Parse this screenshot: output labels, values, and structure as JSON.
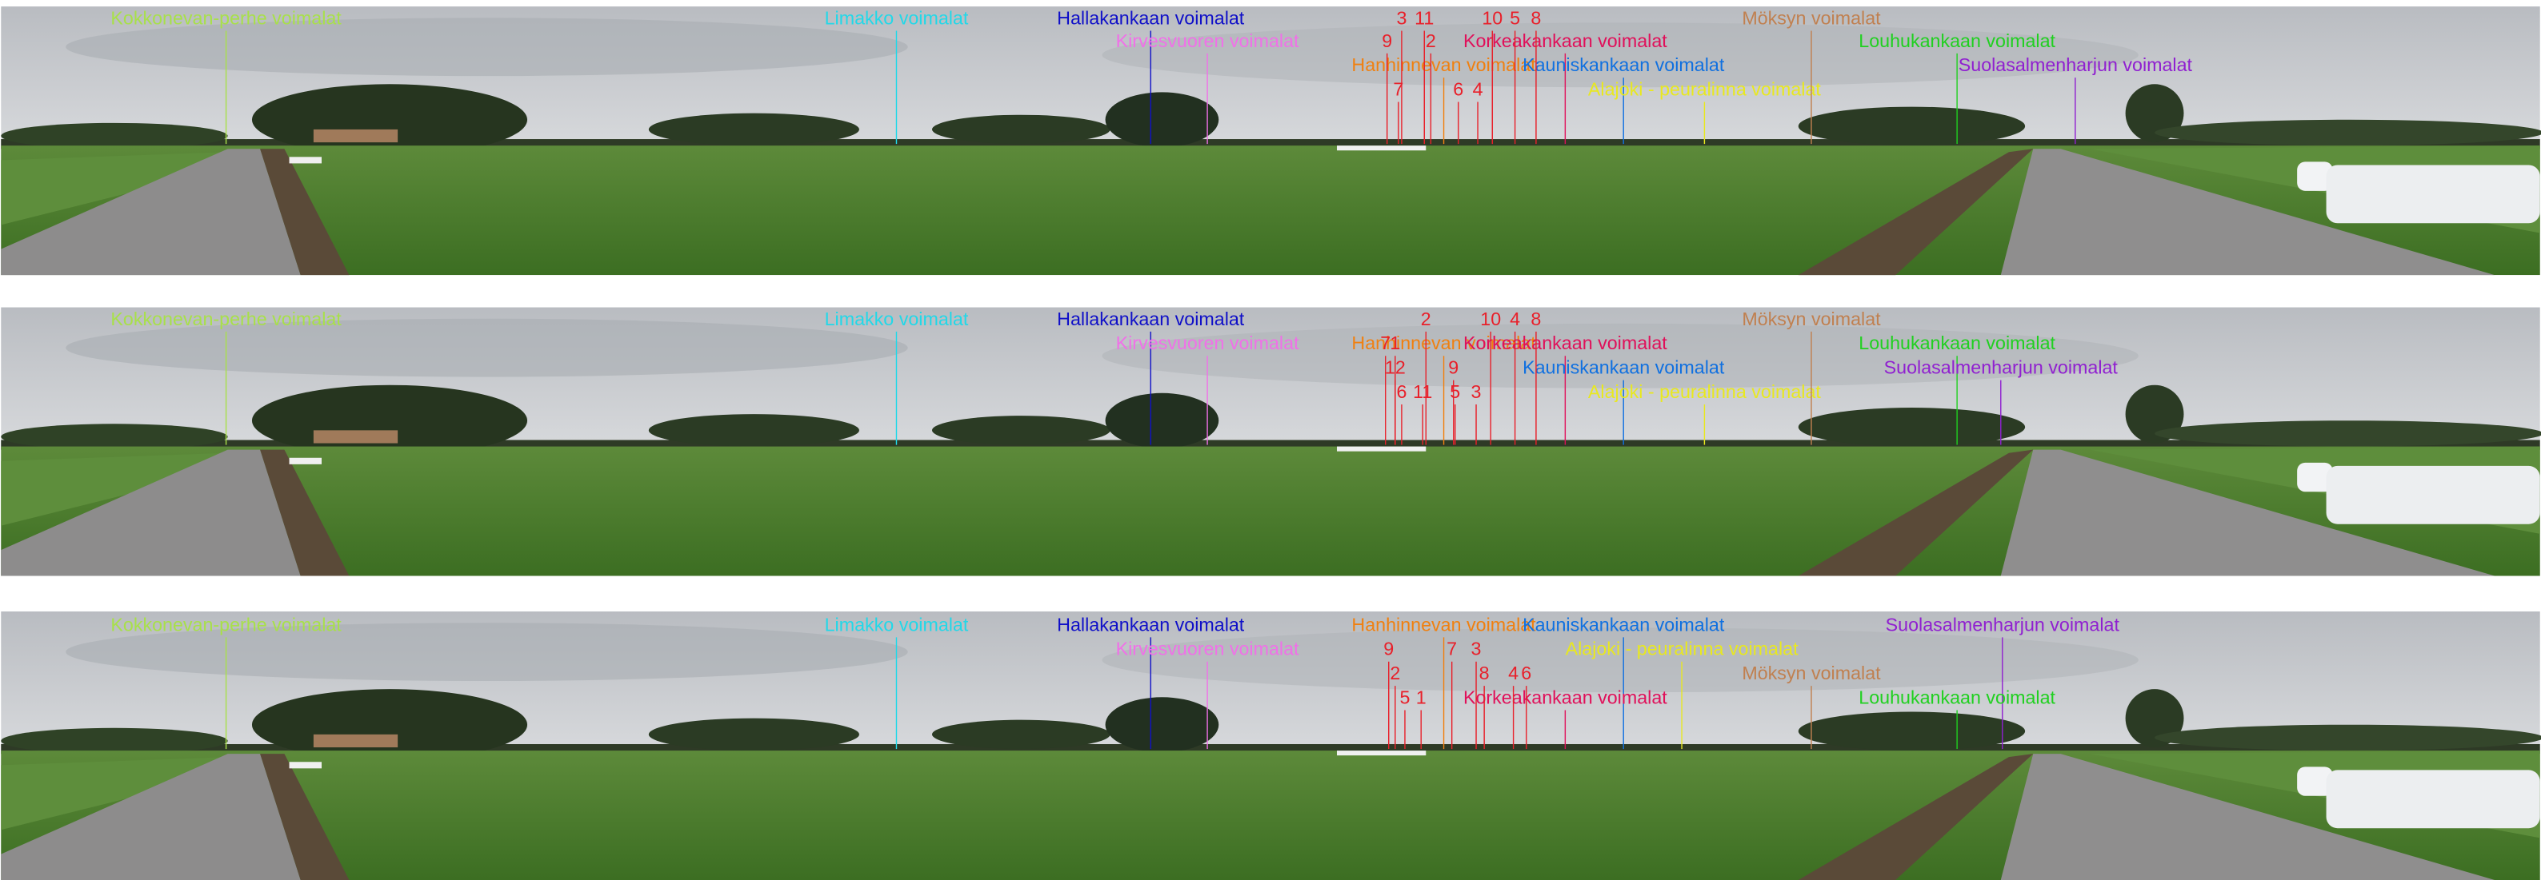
{
  "farms": [
    {
      "name": "Kokkonevan-perhe voimalat",
      "color": "#a8e04a"
    },
    {
      "name": "Limakko voimalat",
      "color": "#22d8e8"
    },
    {
      "name": "Hallakankaan voimalat",
      "color": "#1010c8"
    },
    {
      "name": "Kirvesvuoren voimalat",
      "color": "#f070e8"
    },
    {
      "name": "Hanhinnevan voimalat",
      "color": "#f08010"
    },
    {
      "name": "Korkeakankaan voimalat",
      "color": "#e0105a"
    },
    {
      "name": "Kauniskankaan voimalat",
      "color": "#1070e0"
    },
    {
      "name": "Alajoki - peuralinna voimalat",
      "color": "#e8e820"
    },
    {
      "name": "Möksyn voimalat",
      "color": "#c08050"
    },
    {
      "name": "Louhukankaan voimalat",
      "color": "#20d020"
    },
    {
      "name": "Suolasalmenharjun voimalat",
      "color": "#9020d0"
    }
  ],
  "turbine_number_color": "#e8202a",
  "panels": [
    {
      "turbine_numbers": [
        "3",
        "11",
        "9",
        "2",
        "7",
        "6",
        "4",
        "10",
        "5",
        "8"
      ]
    },
    {
      "turbine_numbers": [
        "2",
        "10",
        "4",
        "8",
        "7",
        "1",
        "12",
        "9",
        "6",
        "11",
        "5",
        "3"
      ]
    },
    {
      "turbine_numbers": [
        "9",
        "7",
        "3",
        "2",
        "8",
        "4",
        "6",
        "5",
        "1"
      ]
    }
  ]
}
